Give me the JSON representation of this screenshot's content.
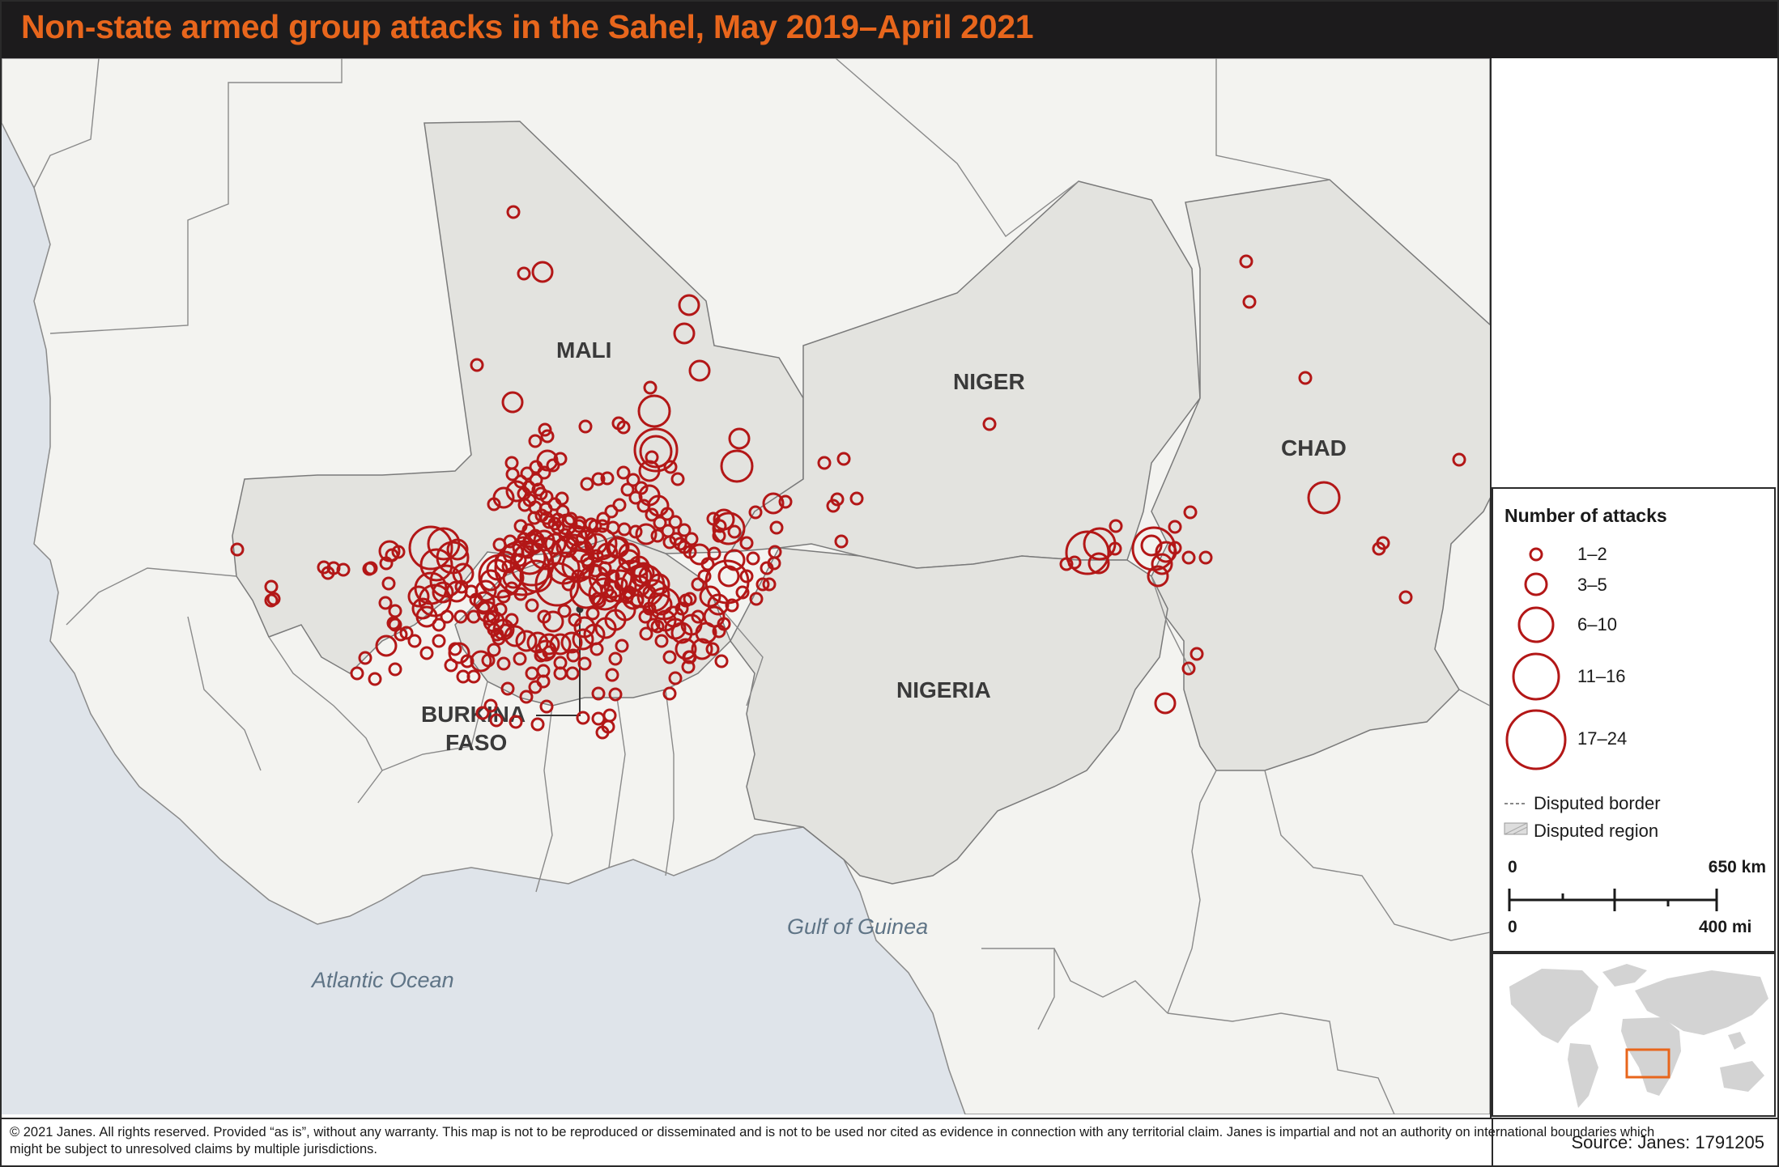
{
  "title": "Non-state armed group attacks in the Sahel, May 2019–April 2021",
  "countries": {
    "mali": "MALI",
    "niger": "NIGER",
    "chad": "CHAD",
    "nigeria": "NIGERIA",
    "burkina_line1": "BURKINA",
    "burkina_line2": "FASO"
  },
  "water_labels": {
    "atlantic": "Atlantic Ocean",
    "guinea": "Gulf of Guinea"
  },
  "legend": {
    "title": "Number of attacks",
    "classes": [
      {
        "label": "1–2"
      },
      {
        "label": "3–5"
      },
      {
        "label": "6–10"
      },
      {
        "label": "11–16"
      },
      {
        "label": "17–24"
      }
    ],
    "disputed_border": "Disputed border",
    "disputed_region": "Disputed region"
  },
  "scale_bar": {
    "km_zero": "0",
    "km_max": "650 km",
    "mi_zero": "0",
    "mi_max": "400 mi"
  },
  "footer": {
    "disclaimer": "© 2021 Janes. All rights reserved. Provided “as is”, without any warranty. This map is not to be reproduced or disseminated and is not to be used nor cited as evidence in connection with any territorial claim. Janes is impartial and not an authority on international boundaries which might be subject to unresolved claims by multiple jurisdictions.",
    "source": "Source: Janes: 1791205"
  },
  "colors": {
    "attack_marker": "#b31717",
    "title": "#e8661c",
    "highlight_country": "#e3e3df",
    "land": "#f3f3f0",
    "ocean": "#dfe4ea",
    "inset_frame": "#e8661c"
  }
}
